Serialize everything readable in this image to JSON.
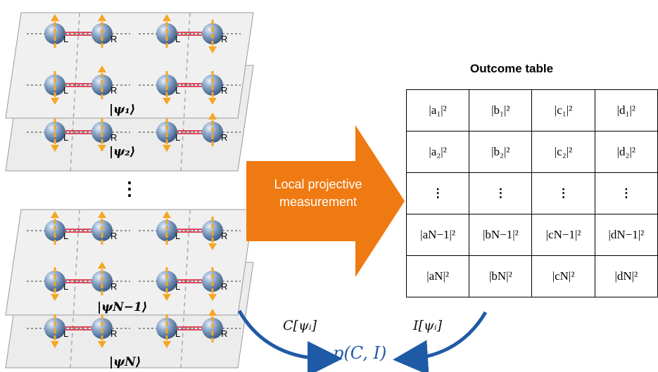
{
  "outcome_table": {
    "title": "Outcome table",
    "rows": [
      [
        "|a₁|²",
        "|b₁|²",
        "|c₁|²",
        "|d₁|²"
      ],
      [
        "|a₂|²",
        "|b₂|²",
        "|c₂|²",
        "|d₂|²"
      ],
      [
        "⋮",
        "⋮",
        "⋮",
        "⋮"
      ],
      [
        "|aN−1|²",
        "|bN−1|²",
        "|cN−1|²",
        "|dN−1|²"
      ],
      [
        "|aN|²",
        "|bN|²",
        "|cN|²",
        "|dN|²"
      ]
    ]
  },
  "arrow": {
    "line1": "Local projective",
    "line2": "measurement",
    "color": "#f07a12"
  },
  "states": {
    "psi1": "|ψ₁⟩",
    "psi2": "|ψ₂⟩",
    "psiN1": "|ψN−1⟩",
    "psiN": "|ψN⟩",
    "ellipsis": "⋮"
  },
  "spin_labels": {
    "left": "L",
    "right": "R"
  },
  "functions": {
    "c": "C[ψᵢ]",
    "i": "I[ψᵢ]",
    "p": "p(C, I)"
  },
  "colors": {
    "spin_arrow": "#f5a623",
    "sphere": "#6f8fb5",
    "bond": "#e0102a",
    "curve": "#1f5aa6"
  }
}
